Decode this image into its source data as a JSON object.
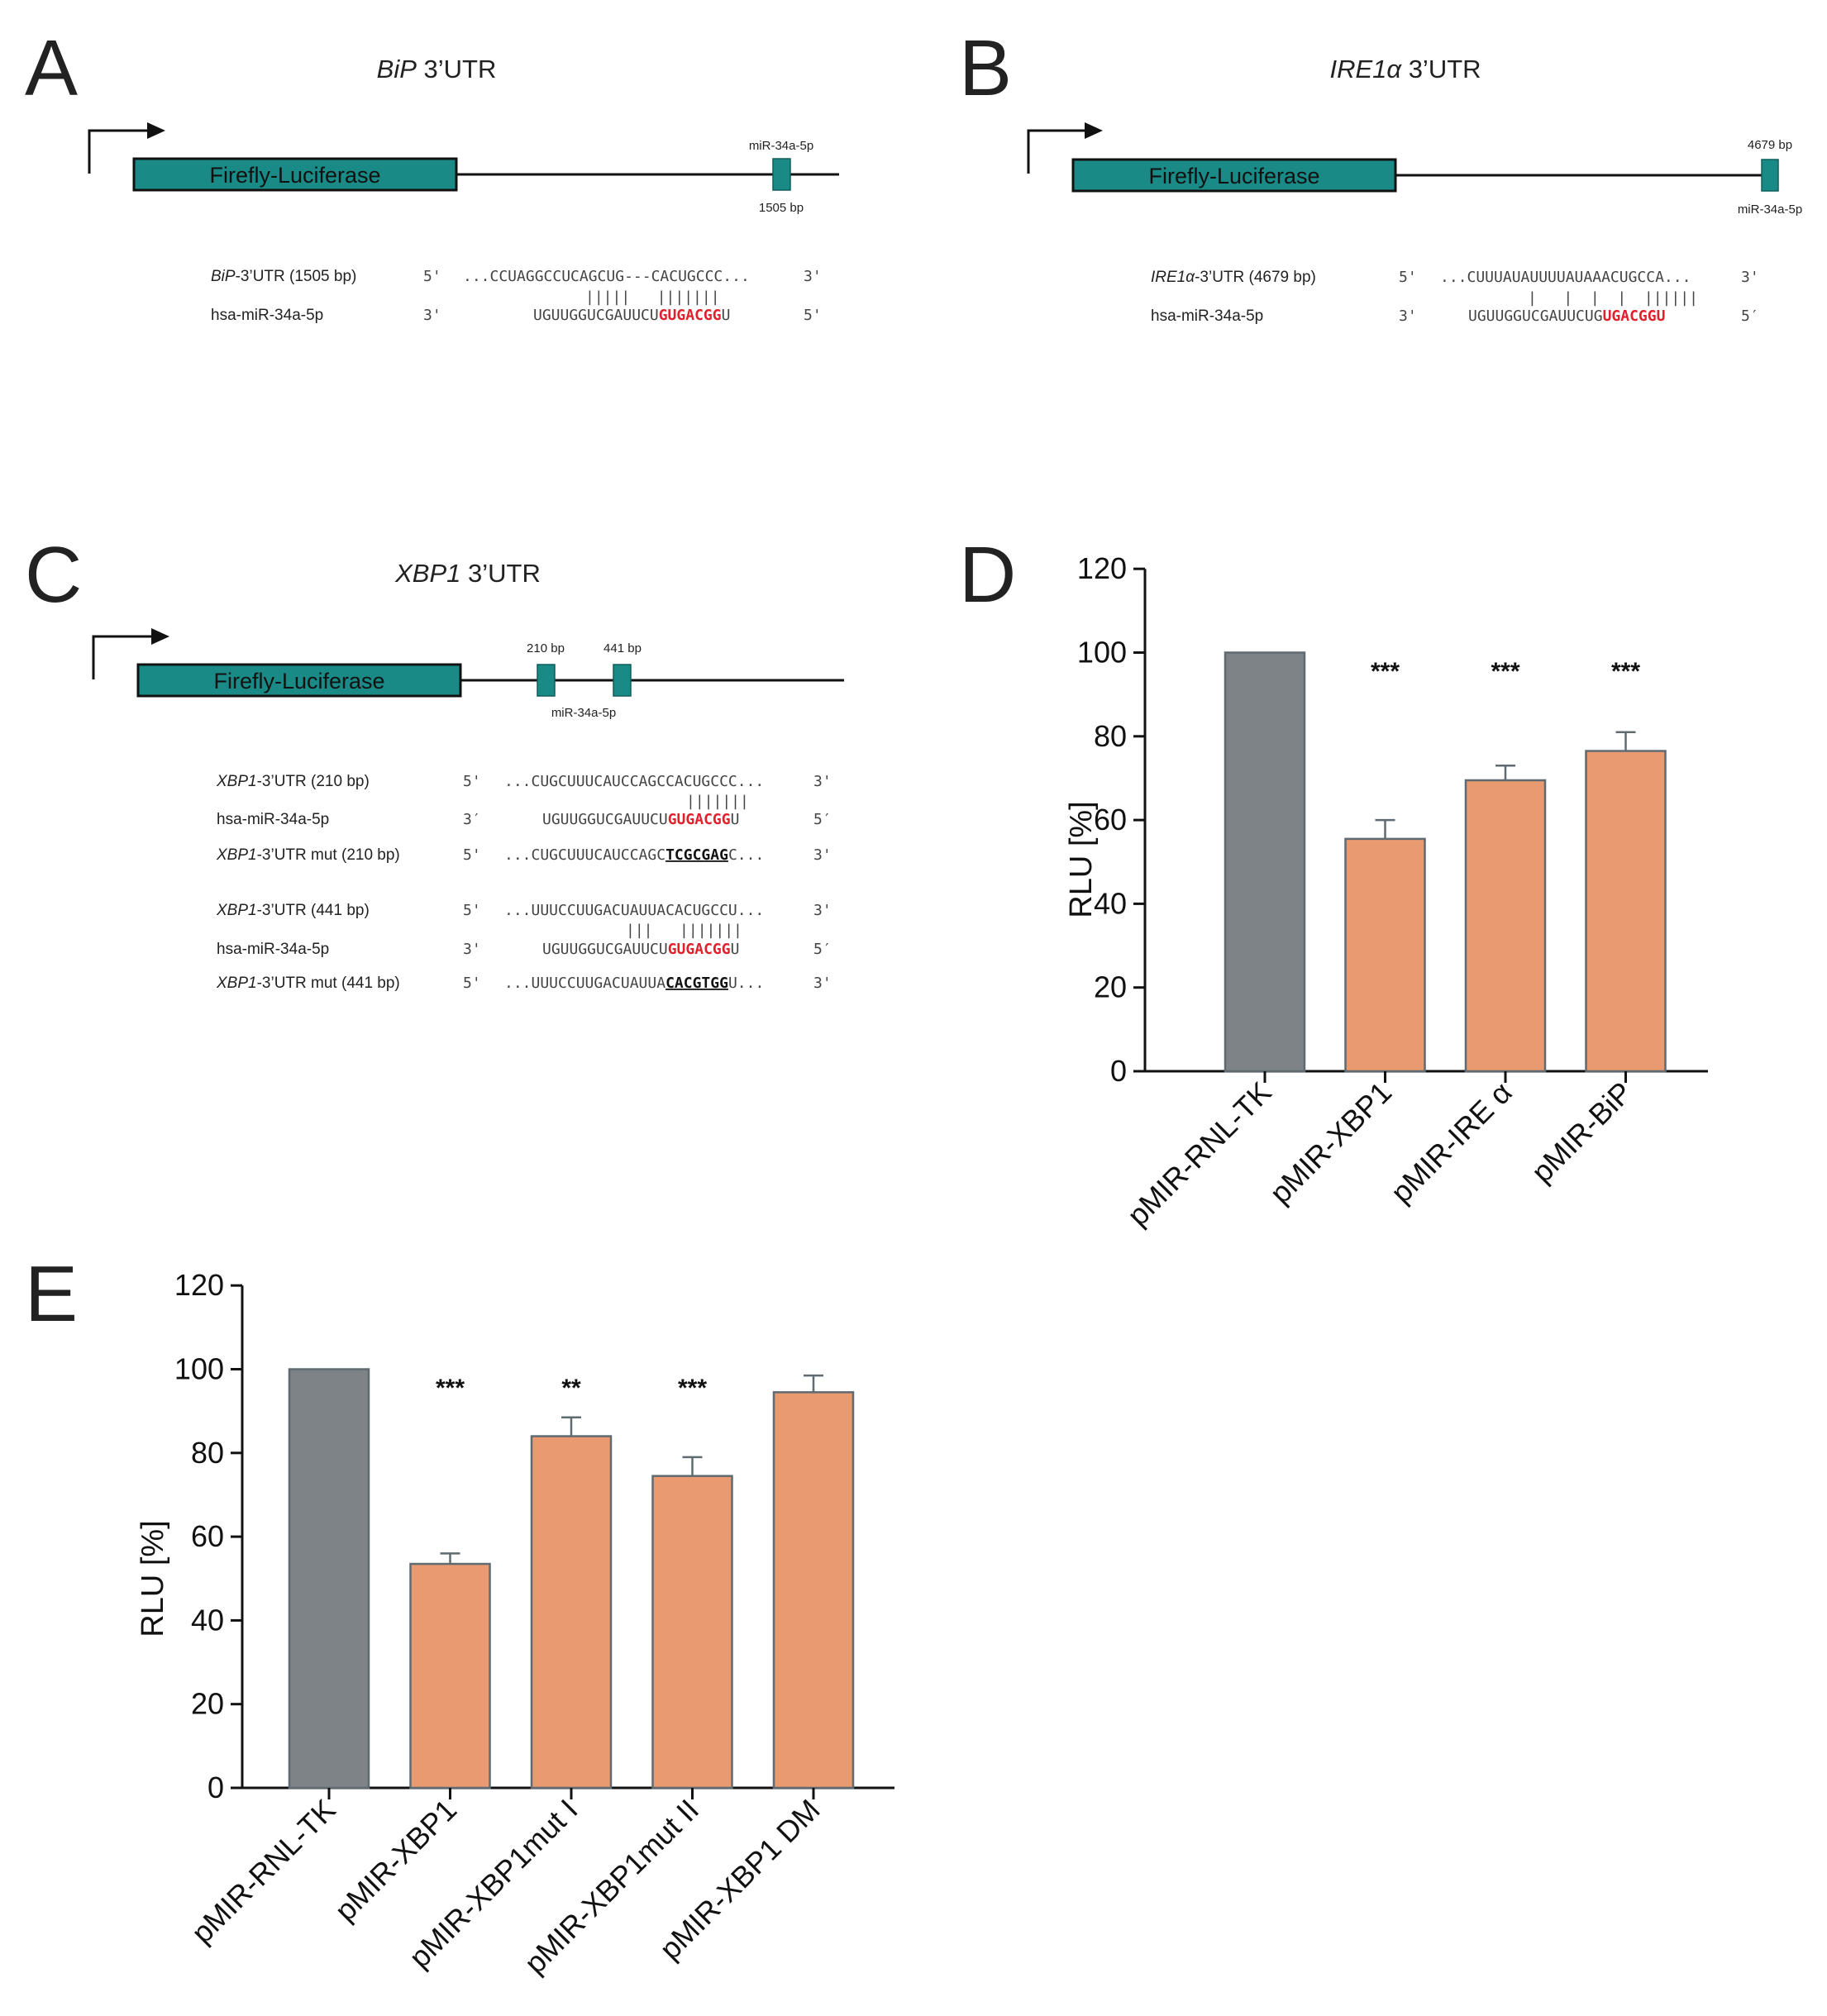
{
  "colors": {
    "teal": "#1a8a86",
    "gray_bar": "#7d8387",
    "orange_bar": "#e99a70",
    "bar_stroke": "#5f6b70",
    "seed_red": "#e0202a",
    "text": "#222222"
  },
  "panels": {
    "A": {
      "letter": "A",
      "title_italic": "BiP",
      "title_rest": " 3’UTR",
      "luciferase_label": "Firefly-Luciferase",
      "site_top_label": "miR-34a-5p",
      "site_bottom_label": "1505 bp",
      "utr_label_italic": "BiP",
      "utr_label_rest": "-3’UTR (1505 bp)",
      "utr_end5": "5'",
      "utr_seq": "...CCUAGGCCUCAGCUG---CACUGCCC...",
      "utr_end3": "3'",
      "pairs": "|||||   |||||||",
      "mir_label": "hsa-miR-34a-5p",
      "mir_end3": "3'",
      "mir_seq_plain": "UGUUGGUCGAUUCU",
      "mir_seq_seed": "GUGACGG",
      "mir_seq_tail": "U",
      "mir_end5": "5'"
    },
    "B": {
      "letter": "B",
      "title_italic": "IRE1α",
      "title_rest": " 3’UTR",
      "luciferase_label": "Firefly-Luciferase",
      "site_top_label": "4679 bp",
      "site_bottom_label": "miR-34a-5p",
      "utr_label_italic": "IRE1α",
      "utr_label_rest": "-3’UTR (4679 bp)",
      "utr_end5": "5'",
      "utr_seq": "...CUUUAUAUUUUAUAAACUGCCA...",
      "utr_end3": "3'",
      "pairs": "|   |  |  |  ||||||",
      "mir_label": "hsa-miR-34a-5p",
      "mir_end3": "3'",
      "mir_seq_plain": "UGUUGGUCGAUUCUG",
      "mir_seq_seed": "UGACGGU",
      "mir_end5": "5′"
    },
    "C": {
      "letter": "C",
      "title_italic": "XBP1",
      "title_rest": " 3’UTR",
      "luciferase_label": "Firefly-Luciferase",
      "site1_label": "210 bp",
      "site2_label": "441 bp",
      "site_bottom_label": "miR-34a-5p",
      "rows": [
        {
          "label_italic": "XBP1",
          "label_rest": "-3’UTR (210 bp)",
          "end5": "5'",
          "seq": "...CUGCUUUCAUCCAGCCACUGCCC...",
          "end3": "3'"
        },
        {
          "pairs": "|||||||"
        },
        {
          "label": "hsa-miR-34a-5p",
          "end3": "3′",
          "seq_plain": "UGUUGGUCGAUUCU",
          "seq_seed": "GUGACGG",
          "seq_tail": "U",
          "end5": "5′"
        },
        {
          "label_italic": "XBP1",
          "label_rest": "-3’UTR mut (210 bp)",
          "end5": "5'",
          "seq_plain": "...CUGCUUUCAUCCAGC",
          "seq_mut": "TCGCGAG",
          "seq_tail": "C...",
          "end3": "3'"
        },
        {
          "label_italic": "XBP1",
          "label_rest": "-3’UTR (441 bp)",
          "end5": "5'",
          "seq": "...UUUCCUUGACUAUUACACUGCCU...",
          "end3": "3'"
        },
        {
          "pairs": "|||   |||||||"
        },
        {
          "label": "hsa-miR-34a-5p",
          "end3": "3'",
          "seq_plain": "UGUUGGUCGAUUCU",
          "seq_seed": "GUGACGG",
          "seq_tail": "U",
          "end5": "5′"
        },
        {
          "label_italic": "XBP1",
          "label_rest": "-3’UTR mut (441 bp)",
          "end5": "5'",
          "seq_plain": "...UUUCCUUGACUAUUA",
          "seq_mut": "CACGTGG",
          "seq_tail": "U...",
          "end3": "3'"
        }
      ]
    },
    "D": {
      "letter": "D"
    },
    "E": {
      "letter": "E"
    }
  },
  "chart_data": [
    {
      "panel": "D",
      "type": "bar",
      "title": "",
      "xlabel": "",
      "ylabel": "RLU [%]",
      "ylim": [
        0,
        120
      ],
      "yticks": [
        0,
        20,
        40,
        60,
        80,
        100,
        120
      ],
      "categories": [
        "pMIR-RNL-TK",
        "pMIR-XBP1",
        "pMIR-IRE α",
        "pMIR-BiP"
      ],
      "values": [
        100,
        55.5,
        69.5,
        76.5
      ],
      "errors": [
        0,
        4.5,
        3.5,
        4.5
      ],
      "colors": [
        "gray",
        "orange",
        "orange",
        "orange"
      ],
      "significance": [
        "",
        "***",
        "***",
        "***"
      ]
    },
    {
      "panel": "E",
      "type": "bar",
      "title": "",
      "xlabel": "",
      "ylabel": "RLU [%]",
      "ylim": [
        0,
        120
      ],
      "yticks": [
        0,
        20,
        40,
        60,
        80,
        100,
        120
      ],
      "categories": [
        "pMIR-RNL-TK",
        "pMIR-XBP1",
        "pMIR-XBP1mut I",
        "pMIR-XBP1mut II",
        "pMIR-XBP1 DM"
      ],
      "values": [
        100,
        53.5,
        84,
        74.5,
        94.5
      ],
      "errors": [
        0,
        2.5,
        4.5,
        4.5,
        4
      ],
      "colors": [
        "gray",
        "orange",
        "orange",
        "orange",
        "orange"
      ],
      "significance": [
        "",
        "***",
        "**",
        "***",
        ""
      ]
    }
  ]
}
